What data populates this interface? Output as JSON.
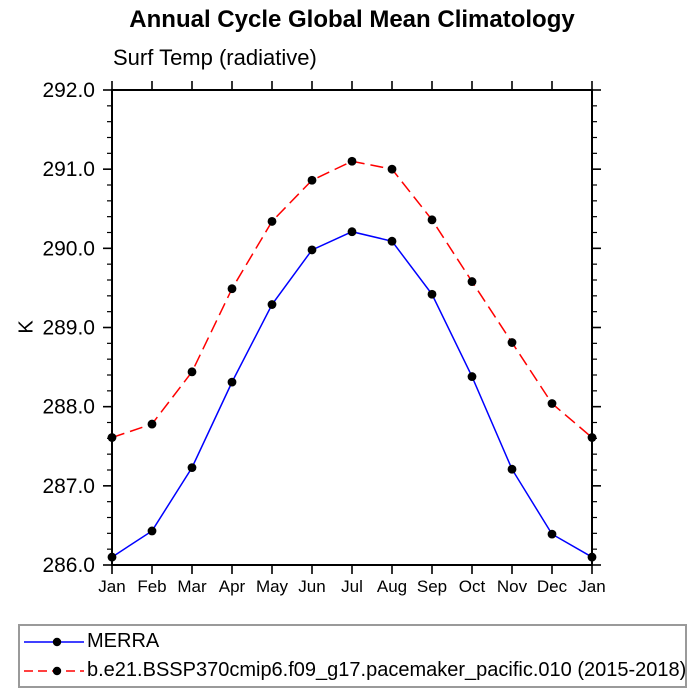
{
  "chart_data": {
    "type": "line",
    "title": "Annual Cycle Global Mean Climatology",
    "subtitle": "Surf Temp (radiative)",
    "ylabel": "K",
    "ylim": [
      286.0,
      292.0
    ],
    "y_major_interval": 1.0,
    "y_minor_interval": 0.2,
    "y_tick_labels": [
      "286.0",
      "287.0",
      "288.0",
      "289.0",
      "290.0",
      "291.0",
      "292.0"
    ],
    "x_labels": [
      "Jan",
      "Feb",
      "Mar",
      "Apr",
      "May",
      "Jun",
      "Jul",
      "Aug",
      "Sep",
      "Oct",
      "Nov",
      "Dec",
      "Jan"
    ],
    "grid": false,
    "legend_position": "bottom",
    "axis_color": "#000000",
    "marker_color": "#000000",
    "series": [
      {
        "name": "MERRA",
        "color": "#0000ff",
        "line_style": "solid",
        "marker": "filled-circle",
        "values": [
          286.1,
          286.43,
          287.23,
          288.31,
          289.29,
          289.98,
          290.21,
          290.09,
          289.42,
          288.38,
          287.21,
          286.39,
          286.1
        ]
      },
      {
        "name": "b.e21.BSSP370cmip6.f09_g17.pacemaker_pacific.010 (2015-2018)",
        "color": "#ff0000",
        "line_style": "dashed",
        "marker": "filled-circle",
        "values": [
          287.61,
          287.78,
          288.44,
          289.49,
          290.34,
          290.86,
          291.1,
          291.0,
          290.36,
          289.58,
          288.81,
          288.04,
          287.61
        ]
      }
    ]
  }
}
